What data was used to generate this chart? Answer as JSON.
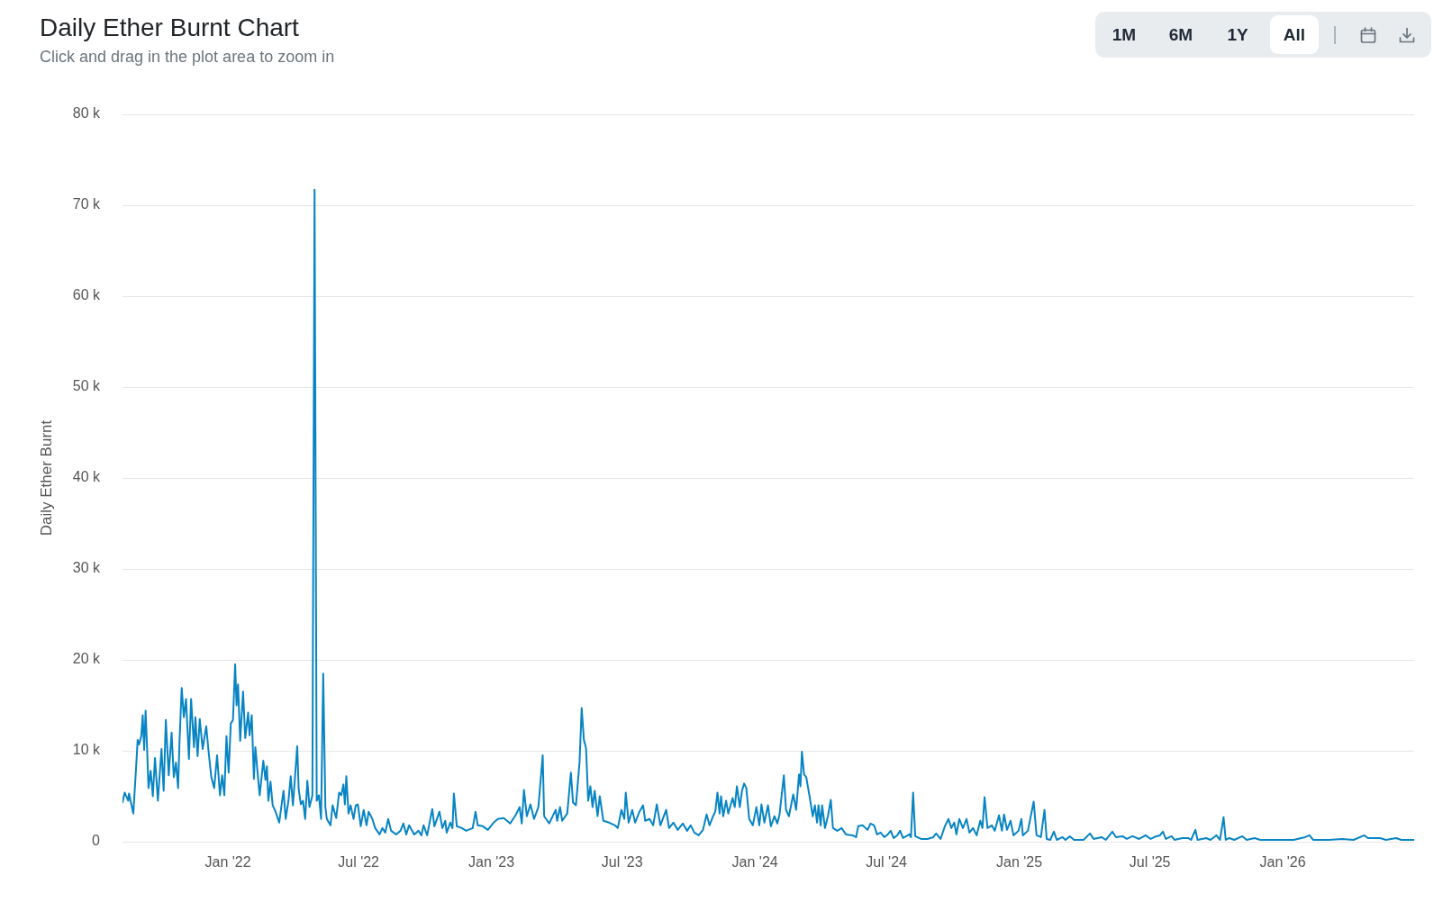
{
  "chart_data": {
    "type": "line",
    "title": "Daily Ether Burnt Chart",
    "subtitle": "Click and drag in the plot area to zoom in",
    "ylabel": "Daily Ether Burnt",
    "color": "#0784c3",
    "x": [
      "2021-08-08",
      "2021-08-11",
      "2021-08-16",
      "2021-08-17",
      "2021-08-23",
      "2021-08-27",
      "2021-08-29",
      "2021-08-31",
      "2021-09-03",
      "2021-09-05",
      "2021-09-07",
      "2021-09-09",
      "2021-09-11",
      "2021-09-13",
      "2021-09-16",
      "2021-09-19",
      "2021-09-22",
      "2021-09-26",
      "2021-10-01",
      "2021-10-04",
      "2021-10-07",
      "2021-10-11",
      "2021-10-15",
      "2021-10-18",
      "2021-10-21",
      "2021-10-24",
      "2021-10-26",
      "2021-10-29",
      "2021-11-01",
      "2021-11-04",
      "2021-11-08",
      "2021-11-11",
      "2021-11-15",
      "2021-11-17",
      "2021-11-20",
      "2021-11-23",
      "2021-11-27",
      "2021-12-02",
      "2021-12-05",
      "2021-12-09",
      "2021-12-13",
      "2021-12-17",
      "2021-12-21",
      "2021-12-24",
      "2021-12-27",
      "2021-12-30",
      "2022-01-02",
      "2022-01-05",
      "2022-01-08",
      "2022-01-11",
      "2022-01-13",
      "2022-01-15",
      "2022-01-18",
      "2022-01-22",
      "2022-01-25",
      "2022-01-29",
      "2022-01-31",
      "2022-02-03",
      "2022-02-06",
      "2022-02-08",
      "2022-02-12",
      "2022-02-14",
      "2022-02-19",
      "2022-02-22",
      "2022-02-24",
      "2022-02-26",
      "2022-03-01",
      "2022-03-04",
      "2022-03-08",
      "2022-03-13",
      "2022-03-19",
      "2022-03-22",
      "2022-03-26",
      "2022-03-29",
      "2022-04-01",
      "2022-04-03",
      "2022-04-07",
      "2022-04-09",
      "2022-04-12",
      "2022-04-15",
      "2022-04-18",
      "2022-04-21",
      "2022-04-24",
      "2022-04-28",
      "2022-05-01",
      "2022-05-04",
      "2022-05-07",
      "2022-05-10",
      "2022-05-13",
      "2022-05-16",
      "2022-05-18",
      "2022-05-23",
      "2022-05-26",
      "2022-05-31",
      "2022-06-04",
      "2022-06-07",
      "2022-06-10",
      "2022-06-12",
      "2022-06-14",
      "2022-06-17",
      "2022-06-20",
      "2022-06-24",
      "2022-06-27",
      "2022-06-30",
      "2022-07-04",
      "2022-07-08",
      "2022-07-12",
      "2022-07-15",
      "2022-07-20",
      "2022-07-24",
      "2022-07-30",
      "2022-08-03",
      "2022-08-07",
      "2022-08-11",
      "2022-08-15",
      "2022-08-22",
      "2022-08-28",
      "2022-09-01",
      "2022-09-05",
      "2022-09-09",
      "2022-09-16",
      "2022-09-22",
      "2022-09-26",
      "2022-09-29",
      "2022-10-04",
      "2022-10-11",
      "2022-10-14",
      "2022-10-21",
      "2022-10-25",
      "2022-10-29",
      "2022-10-31",
      "2022-11-05",
      "2022-11-08",
      "2022-11-10",
      "2022-11-14",
      "2022-11-21",
      "2022-11-27",
      "2022-12-06",
      "2022-12-10",
      "2022-12-13",
      "2022-12-20",
      "2022-12-27",
      "2023-01-04",
      "2023-01-10",
      "2023-01-18",
      "2023-01-27",
      "2023-02-04",
      "2023-02-09",
      "2023-02-12",
      "2023-02-15",
      "2023-02-19",
      "2023-02-24",
      "2023-03-01",
      "2023-03-07",
      "2023-03-13",
      "2023-03-15",
      "2023-03-22",
      "2023-03-31",
      "2023-04-02",
      "2023-04-06",
      "2023-04-09",
      "2023-04-16",
      "2023-04-21",
      "2023-04-24",
      "2023-04-28",
      "2023-05-03",
      "2023-05-06",
      "2023-05-09",
      "2023-05-12",
      "2023-05-15",
      "2023-05-18",
      "2023-05-21",
      "2023-05-24",
      "2023-05-28",
      "2023-05-31",
      "2023-06-05",
      "2023-06-13",
      "2023-06-21",
      "2023-06-25",
      "2023-06-30",
      "2023-07-04",
      "2023-07-06",
      "2023-07-10",
      "2023-07-15",
      "2023-07-19",
      "2023-07-25",
      "2023-07-30",
      "2023-08-02",
      "2023-08-08",
      "2023-08-13",
      "2023-08-18",
      "2023-08-23",
      "2023-08-31",
      "2023-09-04",
      "2023-09-10",
      "2023-09-16",
      "2023-09-23",
      "2023-09-29",
      "2023-10-04",
      "2023-10-09",
      "2023-10-15",
      "2023-10-21",
      "2023-10-26",
      "2023-10-30",
      "2023-11-04",
      "2023-11-07",
      "2023-11-10",
      "2023-11-13",
      "2023-11-15",
      "2023-11-18",
      "2023-11-22",
      "2023-11-25",
      "2023-12-01",
      "2023-12-04",
      "2023-12-07",
      "2023-12-11",
      "2023-12-14",
      "2023-12-17",
      "2023-12-20",
      "2023-12-24",
      "2023-12-29",
      "2024-01-03",
      "2024-01-07",
      "2024-01-10",
      "2024-01-14",
      "2024-01-19",
      "2024-01-23",
      "2024-01-28",
      "2024-02-01",
      "2024-02-04",
      "2024-02-10",
      "2024-02-13",
      "2024-02-17",
      "2024-02-23",
      "2024-02-27",
      "2024-03-02",
      "2024-03-04",
      "2024-03-06",
      "2024-03-09",
      "2024-03-12",
      "2024-03-17",
      "2024-03-21",
      "2024-03-24",
      "2024-03-27",
      "2024-03-29",
      "2024-04-01",
      "2024-04-03",
      "2024-04-07",
      "2024-04-11",
      "2024-04-15",
      "2024-04-18",
      "2024-04-24",
      "2024-04-30",
      "2024-05-06",
      "2024-05-15",
      "2024-05-20",
      "2024-05-23",
      "2024-05-29",
      "2024-06-05",
      "2024-06-09",
      "2024-06-14",
      "2024-06-18",
      "2024-06-23",
      "2024-06-28",
      "2024-07-03",
      "2024-07-07",
      "2024-07-11",
      "2024-07-16",
      "2024-07-20",
      "2024-07-24",
      "2024-08-02",
      "2024-08-04",
      "2024-08-07",
      "2024-08-10",
      "2024-08-18",
      "2024-08-27",
      "2024-09-04",
      "2024-09-08",
      "2024-09-14",
      "2024-09-20",
      "2024-09-25",
      "2024-09-29",
      "2024-10-03",
      "2024-10-06",
      "2024-10-10",
      "2024-10-15",
      "2024-10-20",
      "2024-10-24",
      "2024-10-29",
      "2024-11-03",
      "2024-11-08",
      "2024-11-11",
      "2024-11-14",
      "2024-11-18",
      "2024-11-24",
      "2024-11-28",
      "2024-12-04",
      "2024-12-08",
      "2024-12-11",
      "2024-12-15",
      "2024-12-20",
      "2024-12-24",
      "2024-12-31",
      "2025-01-04",
      "2025-01-06",
      "2025-01-13",
      "2025-01-21",
      "2025-01-25",
      "2025-01-31",
      "2025-02-05",
      "2025-02-08",
      "2025-02-13",
      "2025-02-18",
      "2025-02-22",
      "2025-03-02",
      "2025-03-06",
      "2025-03-12",
      "2025-03-18",
      "2025-03-31",
      "2025-04-09",
      "2025-04-14",
      "2025-04-25",
      "2025-05-01",
      "2025-05-10",
      "2025-05-15",
      "2025-05-24",
      "2025-05-30",
      "2025-06-07",
      "2025-06-16",
      "2025-06-25",
      "2025-07-02",
      "2025-07-10",
      "2025-07-15",
      "2025-07-19",
      "2025-07-23",
      "2025-07-31",
      "2025-08-04",
      "2025-08-15",
      "2025-08-23",
      "2025-08-27",
      "2025-09-02",
      "2025-09-05",
      "2025-09-17",
      "2025-09-23",
      "2025-10-01",
      "2025-10-06",
      "2025-10-11",
      "2025-10-14",
      "2025-10-19",
      "2025-10-26",
      "2025-11-06",
      "2025-11-12",
      "2025-11-23",
      "2025-12-01",
      "2025-12-26",
      "2026-01-16",
      "2026-02-01",
      "2026-02-07",
      "2026-02-12",
      "2026-03-06",
      "2026-03-24",
      "2026-04-09",
      "2026-04-24",
      "2026-04-29",
      "2026-05-10",
      "2026-05-16",
      "2026-05-24",
      "2026-06-07",
      "2026-06-14",
      "2026-07-02"
    ],
    "values": [
      4300,
      5400,
      4500,
      5300,
      3100,
      8400,
      11200,
      10700,
      11600,
      13900,
      10100,
      14400,
      10400,
      5900,
      7800,
      5000,
      9200,
      4500,
      10200,
      5600,
      13400,
      7300,
      12000,
      7100,
      8700,
      5900,
      11100,
      16900,
      13700,
      15700,
      9100,
      15700,
      10400,
      13700,
      9400,
      13500,
      10200,
      12700,
      10100,
      7100,
      5900,
      9500,
      5100,
      7300,
      5100,
      11600,
      7600,
      13000,
      13400,
      19500,
      15000,
      17300,
      11100,
      16500,
      11400,
      14200,
      11700,
      13900,
      6900,
      10400,
      6800,
      5100,
      8900,
      6800,
      8300,
      4500,
      6600,
      4000,
      3300,
      2100,
      5600,
      2500,
      4600,
      7200,
      4000,
      6100,
      10500,
      5800,
      4100,
      4500,
      2500,
      6700,
      3800,
      5100,
      71700,
      4500,
      5100,
      2500,
      18500,
      3800,
      2500,
      1800,
      4000,
      2600,
      5400,
      5100,
      6300,
      4100,
      7200,
      3100,
      4000,
      2500,
      4000,
      4100,
      1700,
      3500,
      1800,
      3300,
      2500,
      1500,
      800,
      1500,
      1000,
      2500,
      1200,
      800,
      1200,
      2000,
      800,
      1800,
      800,
      1200,
      700,
      1800,
      700,
      3600,
      1700,
      3300,
      1500,
      2300,
      1000,
      2100,
      1500,
      5300,
      1700,
      1500,
      1200,
      1500,
      3300,
      1800,
      1700,
      1300,
      2100,
      2500,
      2600,
      2000,
      3000,
      3800,
      2000,
      5700,
      2800,
      4100,
      2500,
      3800,
      9500,
      2800,
      2000,
      3500,
      2300,
      3800,
      2300,
      3100,
      7600,
      4300,
      4000,
      8700,
      14700,
      11200,
      10300,
      4500,
      6100,
      3800,
      5600,
      2800,
      5000,
      2300,
      2100,
      1800,
      1500,
      3500,
      2500,
      5400,
      2100,
      3500,
      2100,
      3300,
      4000,
      2300,
      2500,
      1800,
      4100,
      1800,
      3500,
      1500,
      2100,
      1300,
      2000,
      1200,
      1800,
      1000,
      700,
      1300,
      3000,
      1800,
      2800,
      3300,
      5400,
      3100,
      5000,
      2800,
      4500,
      3100,
      4800,
      3800,
      6100,
      3800,
      5600,
      6400,
      5900,
      2500,
      1800,
      3800,
      1800,
      4100,
      2100,
      4000,
      1700,
      2800,
      2000,
      3000,
      7300,
      3500,
      2800,
      5200,
      3500,
      7400,
      6100,
      9900,
      7400,
      7100,
      4800,
      2800,
      4000,
      2100,
      4000,
      1800,
      4000,
      1500,
      2800,
      4600,
      1500,
      1200,
      1500,
      800,
      700,
      500,
      1700,
      1800,
      1300,
      2000,
      1800,
      800,
      1000,
      500,
      800,
      1200,
      400,
      700,
      1200,
      400,
      800,
      500,
      5400,
      600,
      300,
      300,
      500,
      900,
      300,
      1700,
      2500,
      1500,
      2100,
      800,
      2500,
      1500,
      2500,
      1000,
      1500,
      700,
      2300,
      1500,
      4900,
      1500,
      1800,
      1200,
      2900,
      1200,
      3000,
      1300,
      2300,
      700,
      1200,
      2500,
      700,
      1200,
      4400,
      700,
      500,
      3500,
      300,
      200,
      1100,
      200,
      500,
      200,
      600,
      200,
      200,
      900,
      300,
      500,
      200,
      1100,
      500,
      600,
      300,
      600,
      300,
      700,
      300,
      600,
      700,
      1100,
      300,
      600,
      200,
      400,
      400,
      200,
      1300,
      200,
      400,
      200,
      700,
      200,
      2700,
      200,
      400,
      200,
      600,
      200,
      400,
      200,
      200,
      200,
      500,
      700,
      200,
      200,
      300,
      200,
      700,
      400,
      400,
      400,
      200,
      400,
      200,
      200
    ],
    "xlim": [
      "2021-08-08",
      "2026-07-02"
    ],
    "xticks": [
      {
        "value": "2022-01-01",
        "label": "Jan '22"
      },
      {
        "value": "2022-07-01",
        "label": "Jul '22"
      },
      {
        "value": "2023-01-01",
        "label": "Jan '23"
      },
      {
        "value": "2023-07-01",
        "label": "Jul '23"
      },
      {
        "value": "2024-01-01",
        "label": "Jan '24"
      },
      {
        "value": "2024-07-01",
        "label": "Jul '24"
      },
      {
        "value": "2025-01-01",
        "label": "Jan '25"
      },
      {
        "value": "2025-07-01",
        "label": "Jul '25"
      },
      {
        "value": "2026-01-01",
        "label": "Jan '26"
      }
    ],
    "ylim": [
      0,
      80000
    ],
    "yticks": [
      0,
      {
        "value": 10000,
        "label": "10 k"
      },
      {
        "value": 20000,
        "label": "20 k"
      },
      {
        "value": 30000,
        "label": "30 k"
      },
      {
        "value": 40000,
        "label": "40 k"
      },
      {
        "value": 50000,
        "label": "50 k"
      },
      {
        "value": 60000,
        "label": "60 k"
      },
      {
        "value": 70000,
        "label": "70 k"
      },
      {
        "value": 80000,
        "label": "80 k"
      }
    ],
    "grid": "y",
    "annotations": [
      "1M",
      "6M",
      "1Y",
      "All"
    ]
  }
}
